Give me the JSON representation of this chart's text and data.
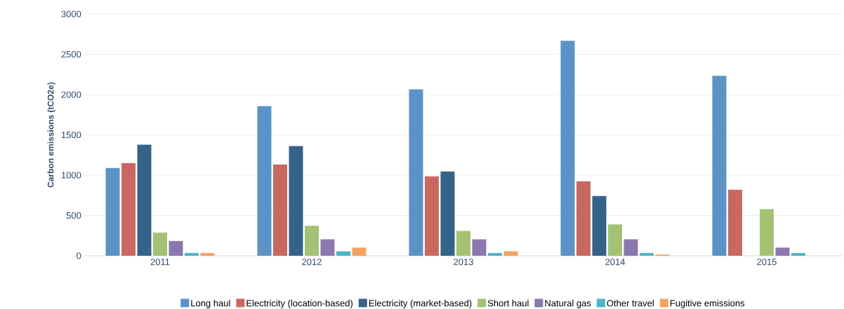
{
  "chart_data": {
    "type": "bar",
    "ylabel": "Carbon emissions (tCO2e)",
    "categories": [
      "2011",
      "2012",
      "2013",
      "2014",
      "2015"
    ],
    "series": [
      {
        "name": "Long haul",
        "color": "#5b93c6",
        "values": [
          1090,
          1857,
          2066,
          2668,
          2232
        ]
      },
      {
        "name": "Electricity (location-based)",
        "color": "#c96860",
        "values": [
          1150,
          1133,
          985,
          924,
          820
        ]
      },
      {
        "name": "Electricity (market-based)",
        "color": "#356289",
        "values": [
          1378,
          1360,
          1046,
          741,
          null
        ]
      },
      {
        "name": "Short haul",
        "color": "#a3c273",
        "values": [
          287,
          372,
          308,
          390,
          579
        ]
      },
      {
        "name": "Natural gas",
        "color": "#8b78ae",
        "values": [
          183,
          204,
          204,
          204,
          101
        ]
      },
      {
        "name": "Other travel",
        "color": "#4ab6c9",
        "values": [
          34,
          55,
          34,
          34,
          34
        ]
      },
      {
        "name": "Fugitive emissions",
        "color": "#f5a261",
        "values": [
          34,
          101,
          55,
          15,
          null
        ]
      }
    ],
    "ylim": [
      0,
      3000
    ],
    "yticks": [
      0,
      500,
      1000,
      1500,
      2000,
      2500,
      3000
    ],
    "grid": "y",
    "legend": "bottom"
  }
}
